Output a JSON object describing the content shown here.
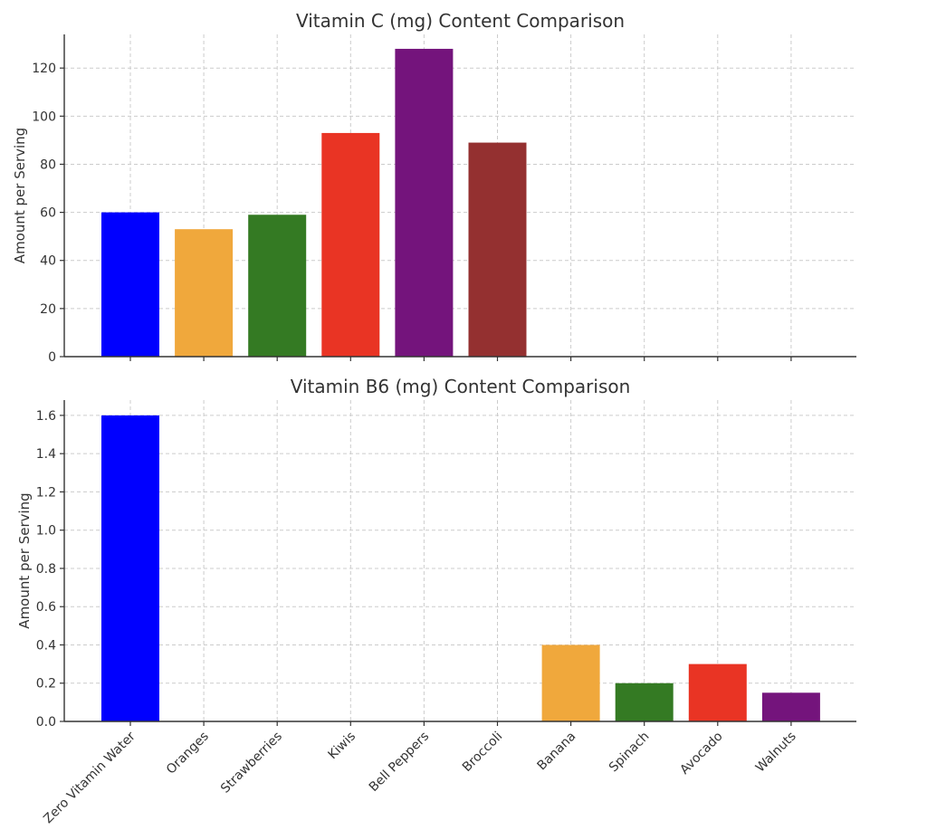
{
  "chart_data": [
    {
      "type": "bar",
      "title": "Vitamin C (mg) Content Comparison",
      "xlabel": "",
      "ylabel": "Amount per Serving",
      "ylim": [
        0,
        134
      ],
      "yticks": [
        "0",
        "20",
        "40",
        "60",
        "80",
        "100",
        "120"
      ],
      "ytick_values": [
        0,
        20,
        40,
        60,
        80,
        100,
        120
      ],
      "grid": true,
      "categories": [
        "Zero Vitamin Water",
        "Oranges",
        "Strawberries",
        "Kiwis",
        "Bell Peppers",
        "Broccoli",
        "Banana",
        "Spinach",
        "Avocado",
        "Walnuts"
      ],
      "values": [
        60,
        53,
        59,
        93,
        128,
        89,
        null,
        null,
        null,
        null
      ],
      "colors": [
        "#0000ff",
        "#f0a83c",
        "#347a23",
        "#e93424",
        "#74147c",
        "#943030",
        null,
        null,
        null,
        null
      ]
    },
    {
      "type": "bar",
      "title": "Vitamin B6 (mg) Content Comparison",
      "xlabel": "",
      "ylabel": "Amount per Serving",
      "ylim": [
        0,
        1.68
      ],
      "yticks": [
        "0.0",
        "0.2",
        "0.4",
        "0.6",
        "0.8",
        "1.0",
        "1.2",
        "1.4",
        "1.6"
      ],
      "ytick_values": [
        0,
        0.2,
        0.4,
        0.6,
        0.8,
        1.0,
        1.2,
        1.4,
        1.6
      ],
      "grid": true,
      "categories": [
        "Zero Vitamin Water",
        "Oranges",
        "Strawberries",
        "Kiwis",
        "Bell Peppers",
        "Broccoli",
        "Banana",
        "Spinach",
        "Avocado",
        "Walnuts"
      ],
      "values": [
        1.6,
        null,
        null,
        null,
        null,
        null,
        0.4,
        0.2,
        0.3,
        0.15
      ],
      "colors": [
        "#0000ff",
        null,
        null,
        null,
        null,
        null,
        "#f0a83c",
        "#347a23",
        "#e93424",
        "#74147c"
      ]
    }
  ]
}
